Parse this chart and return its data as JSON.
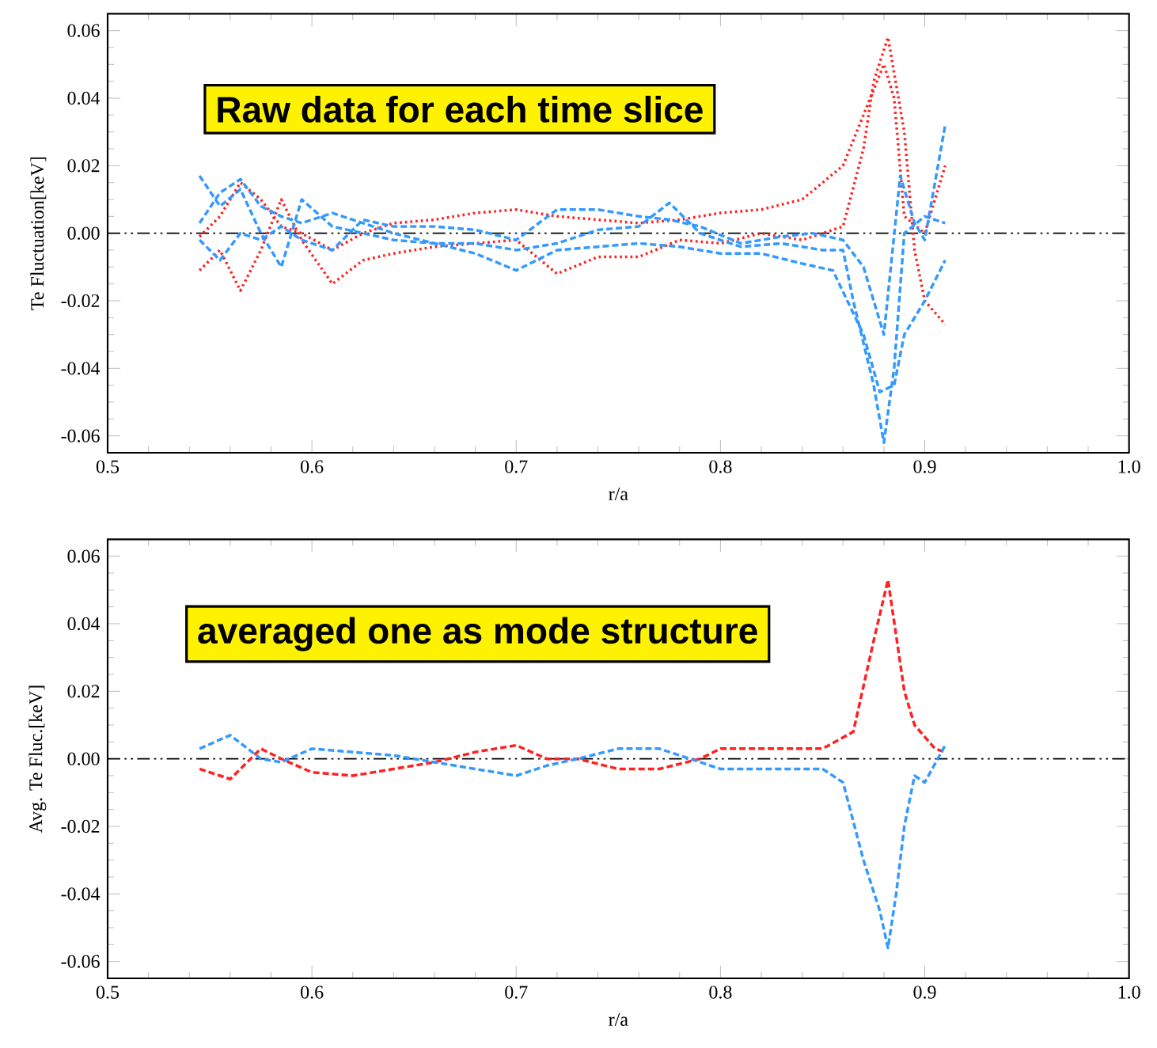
{
  "chart_data": [
    {
      "type": "line",
      "ylabel": "Te Fluctuation[keV]",
      "xlabel": "r/a",
      "annotations": [
        "Raw data for each time slice"
      ],
      "xlim": [
        0.5,
        1.0
      ],
      "ylim": [
        -0.065,
        0.065
      ],
      "xticks": [
        0.5,
        0.6,
        0.7,
        0.8,
        0.9,
        {
          "value": 1.0,
          "label": "1.0"
        }
      ],
      "yticks": [
        -0.06,
        -0.04,
        -0.02,
        {
          "value": 0,
          "label": "0.00"
        },
        0.02,
        0.04,
        0.06
      ],
      "ref_lines": [
        {
          "axis": "y",
          "value": 0,
          "color": "#000000",
          "line_style": "dashdotdotted"
        }
      ],
      "series": [
        {
          "color": "#ff2020",
          "line_style": "dotted",
          "x": [
            0.545,
            0.555,
            0.565,
            0.575,
            0.585,
            0.595,
            0.61,
            0.625,
            0.64,
            0.66,
            0.68,
            0.7,
            0.72,
            0.74,
            0.76,
            0.78,
            0.8,
            0.82,
            0.84,
            0.86,
            0.87,
            0.875,
            0.882,
            0.89,
            0.895,
            0.9,
            0.91
          ],
          "values": [
            -0.011,
            -0.005,
            -0.017,
            -0.005,
            0.01,
            -0.002,
            -0.015,
            -0.008,
            -0.006,
            -0.004,
            -0.003,
            -0.002,
            -0.012,
            -0.007,
            -0.007,
            -0.002,
            -0.003,
            0.0,
            -0.002,
            0.002,
            0.025,
            0.045,
            0.058,
            0.03,
            -0.005,
            -0.02,
            -0.027
          ]
        },
        {
          "color": "#ff2020",
          "line_style": "dotted",
          "x": [
            0.545,
            0.555,
            0.565,
            0.575,
            0.585,
            0.595,
            0.61,
            0.625,
            0.64,
            0.66,
            0.68,
            0.7,
            0.72,
            0.74,
            0.76,
            0.78,
            0.8,
            0.82,
            0.84,
            0.86,
            0.87,
            0.88,
            0.885,
            0.89,
            0.9,
            0.91
          ],
          "values": [
            -0.001,
            0.005,
            0.015,
            0.01,
            0.002,
            0.0,
            -0.005,
            0.0,
            0.003,
            0.004,
            0.006,
            0.007,
            0.005,
            0.004,
            0.003,
            0.004,
            0.006,
            0.007,
            0.01,
            0.02,
            0.035,
            0.05,
            0.04,
            0.005,
            0.0,
            0.02
          ]
        },
        {
          "color": "#3399ff",
          "line_style": "dashed",
          "x": [
            0.545,
            0.555,
            0.565,
            0.575,
            0.585,
            0.595,
            0.61,
            0.625,
            0.64,
            0.66,
            0.68,
            0.7,
            0.72,
            0.74,
            0.76,
            0.775,
            0.79,
            0.81,
            0.83,
            0.85,
            0.86,
            0.865,
            0.875,
            0.88,
            0.885,
            0.89,
            0.9,
            0.91
          ],
          "values": [
            0.017,
            0.008,
            0.013,
            0.0,
            -0.01,
            0.01,
            0.002,
            0.0,
            -0.002,
            -0.003,
            -0.003,
            -0.005,
            -0.003,
            0.001,
            0.002,
            0.009,
            0.0,
            -0.004,
            -0.003,
            -0.005,
            -0.005,
            -0.02,
            -0.045,
            -0.062,
            -0.04,
            0.0,
            0.005,
            0.003
          ]
        },
        {
          "color": "#3399ff",
          "line_style": "dashed",
          "x": [
            0.545,
            0.555,
            0.565,
            0.575,
            0.585,
            0.595,
            0.61,
            0.625,
            0.64,
            0.66,
            0.68,
            0.7,
            0.72,
            0.74,
            0.76,
            0.78,
            0.8,
            0.82,
            0.84,
            0.855,
            0.87,
            0.878,
            0.885,
            0.89,
            0.9,
            0.91
          ],
          "values": [
            0.003,
            0.012,
            0.016,
            0.008,
            0.005,
            0.003,
            0.006,
            0.003,
            0.0,
            -0.003,
            -0.006,
            -0.011,
            -0.005,
            -0.004,
            -0.003,
            -0.004,
            -0.006,
            -0.006,
            -0.009,
            -0.011,
            -0.03,
            -0.047,
            -0.045,
            -0.03,
            -0.02,
            -0.008
          ]
        },
        {
          "color": "#3399ff",
          "line_style": "dashed",
          "x": [
            0.545,
            0.555,
            0.565,
            0.575,
            0.585,
            0.595,
            0.61,
            0.625,
            0.64,
            0.66,
            0.68,
            0.7,
            0.72,
            0.74,
            0.76,
            0.775,
            0.79,
            0.81,
            0.83,
            0.845,
            0.86,
            0.87,
            0.88,
            0.888,
            0.895,
            0.9,
            0.905,
            0.91
          ],
          "values": [
            -0.002,
            -0.008,
            0.0,
            -0.002,
            0.002,
            -0.002,
            -0.005,
            0.004,
            0.002,
            0.002,
            0.001,
            -0.002,
            0.007,
            0.007,
            0.005,
            0.004,
            0.002,
            -0.003,
            -0.001,
            0.0,
            -0.002,
            -0.01,
            -0.03,
            0.017,
            0.003,
            -0.002,
            0.015,
            0.032
          ]
        }
      ]
    },
    {
      "type": "line",
      "ylabel": "Avg. Te Fluc.[keV]",
      "xlabel": "r/a",
      "annotations": [
        "averaged one as mode structure"
      ],
      "xlim": [
        0.5,
        1.0
      ],
      "ylim": [
        -0.065,
        0.065
      ],
      "xticks": [
        0.5,
        0.6,
        0.7,
        0.8,
        0.9,
        {
          "value": 1.0,
          "label": "1.0"
        }
      ],
      "yticks": [
        -0.06,
        -0.04,
        -0.02,
        {
          "value": 0,
          "label": "0.00"
        },
        0.02,
        0.04,
        0.06
      ],
      "ref_lines": [
        {
          "axis": "y",
          "value": 0,
          "color": "#000000",
          "line_style": "dashdotdotted"
        }
      ],
      "series": [
        {
          "color": "#ff2020",
          "line_style": "dashed",
          "x": [
            0.545,
            0.56,
            0.575,
            0.585,
            0.6,
            0.62,
            0.64,
            0.66,
            0.68,
            0.7,
            0.715,
            0.73,
            0.75,
            0.77,
            0.79,
            0.8,
            0.85,
            0.865,
            0.875,
            0.882,
            0.89,
            0.895,
            0.905,
            0.91
          ],
          "values": [
            -0.003,
            -0.006,
            0.003,
            0.0,
            -0.004,
            -0.005,
            -0.003,
            -0.001,
            0.002,
            0.004,
            0.0,
            0.0,
            -0.003,
            -0.003,
            0.0,
            0.003,
            0.003,
            0.008,
            0.035,
            0.053,
            0.02,
            0.01,
            0.003,
            0.002
          ]
        },
        {
          "color": "#3399ff",
          "line_style": "dashed",
          "x": [
            0.545,
            0.56,
            0.575,
            0.585,
            0.6,
            0.62,
            0.64,
            0.66,
            0.68,
            0.7,
            0.715,
            0.73,
            0.75,
            0.77,
            0.79,
            0.8,
            0.85,
            0.86,
            0.87,
            0.878,
            0.882,
            0.886,
            0.89,
            0.895,
            0.9,
            0.91
          ],
          "values": [
            0.003,
            0.007,
            0.0,
            -0.001,
            0.003,
            0.002,
            0.001,
            -0.001,
            -0.003,
            -0.005,
            -0.002,
            0.0,
            0.003,
            0.003,
            -0.001,
            -0.003,
            -0.003,
            -0.007,
            -0.03,
            -0.045,
            -0.056,
            -0.04,
            -0.02,
            -0.005,
            -0.007,
            0.004
          ]
        }
      ]
    }
  ]
}
